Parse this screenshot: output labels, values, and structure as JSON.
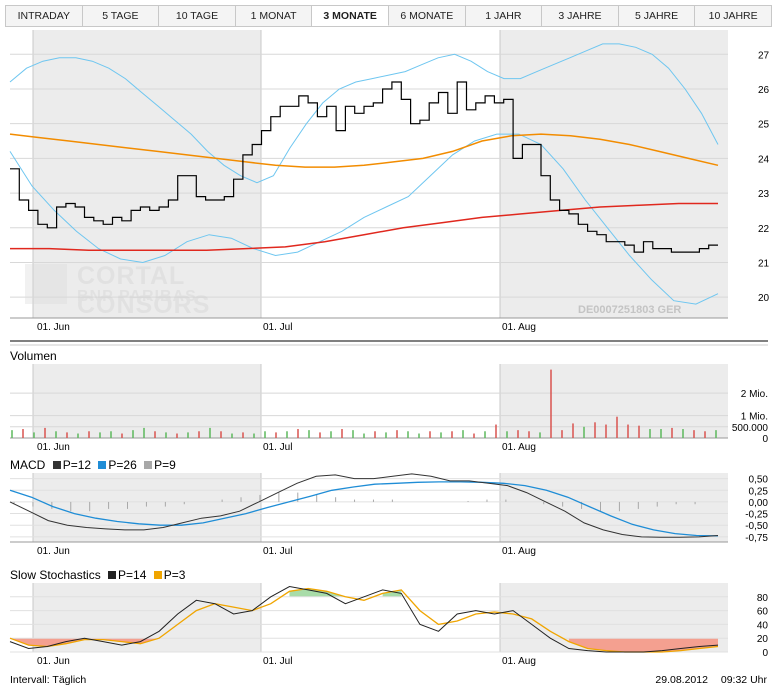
{
  "tabs": [
    {
      "label": "INTRADAY",
      "active": false
    },
    {
      "label": "5 TAGE",
      "active": false
    },
    {
      "label": "10 TAGE",
      "active": false
    },
    {
      "label": "1 MONAT",
      "active": false
    },
    {
      "label": "3 MONATE",
      "active": true
    },
    {
      "label": "6 MONATE",
      "active": false
    },
    {
      "label": "1 JAHR",
      "active": false
    },
    {
      "label": "3 JAHRE",
      "active": false
    },
    {
      "label": "5 JAHRE",
      "active": false
    },
    {
      "label": "10 JAHRE",
      "active": false
    }
  ],
  "watermark": {
    "line1": "CORTAL CONSORS",
    "line2": "BNP PARIBAS"
  },
  "isin": "DE0007251803 GER",
  "x_labels": [
    "01. Jun",
    "01. Jul",
    "01. Aug"
  ],
  "colors": {
    "price": "#000000",
    "bollinger": "#6ec6f0",
    "ma_short": "#f28c00",
    "ma_long": "#e0281e",
    "volume_up": "#5cb85c",
    "volume_down": "#d9534f",
    "macd": "#333333",
    "signal": "#1f8dd6",
    "hist": "#a8a8a8",
    "stoch_k": "#222222",
    "stoch_d": "#f0a500",
    "fill_high": "#a8dca8",
    "fill_low": "#f4a090",
    "shade": "#ececec"
  },
  "chart_data": [
    {
      "type": "line",
      "title": "",
      "y_ticks": [
        20,
        21,
        22,
        23,
        24,
        25,
        26,
        27
      ],
      "ylim": [
        19.4,
        27.7
      ],
      "series": [
        {
          "values": [
            23.7,
            22.8,
            22.5,
            22.1,
            22.0,
            22.6,
            22.7,
            22.6,
            22.3,
            22.2,
            22.1,
            22.3,
            22.2,
            22.5,
            22.6,
            22.5,
            22.6,
            22.8,
            23.5,
            23.5,
            22.9,
            22.8,
            22.8,
            22.9,
            23.4,
            24.1,
            24.4,
            24.8,
            25.2,
            25.5,
            25.5,
            25.8,
            25.6,
            25.2,
            25.5,
            24.8,
            25.5,
            25.3,
            25.5,
            25.6,
            26.0,
            26.2,
            25.7,
            25.0,
            25.1,
            25.6,
            25.9,
            25.3,
            26.2,
            25.4,
            25.6,
            25.8,
            25.6,
            25.7,
            24.0,
            24.4,
            24.4,
            23.5,
            22.8,
            22.5,
            22.4,
            22.1,
            21.9,
            21.8,
            21.6,
            21.6,
            21.5,
            21.3,
            21.6,
            21.4,
            21.4,
            21.3,
            21.3,
            21.3,
            21.4,
            21.5
          ]
        },
        {
          "values": [
            26.2,
            26.6,
            26.8,
            26.9,
            26.9,
            26.8,
            26.6,
            26.3,
            25.9,
            25.5,
            25.1,
            24.7,
            24.2,
            23.8,
            23.5,
            23.3,
            23.5,
            24.3,
            25.0,
            25.6,
            26.0,
            26.2,
            26.3,
            26.4,
            26.5,
            26.7,
            26.9,
            27.0,
            26.8,
            26.5,
            26.3,
            26.3,
            26.5,
            26.7,
            26.9,
            27.1,
            27.3,
            27.3,
            27.2,
            27.0,
            26.6,
            26.0,
            25.3,
            24.4
          ]
        },
        {
          "values": [
            24.2,
            23.2,
            22.5,
            21.9,
            21.4,
            21.1,
            21.0,
            21.2,
            21.6,
            21.8,
            21.7,
            21.4,
            21.2,
            21.3,
            21.6,
            21.9,
            22.3,
            22.6,
            22.9,
            23.5,
            24.1,
            24.5,
            24.7,
            24.7,
            24.4,
            23.7,
            22.8,
            22.0,
            21.2,
            20.5,
            19.9,
            19.8,
            20.1
          ]
        },
        {
          "values": [
            24.7,
            24.6,
            24.5,
            24.4,
            24.3,
            24.2,
            24.1,
            24.0,
            23.9,
            23.8,
            23.75,
            23.75,
            23.8,
            23.9,
            24.0,
            24.2,
            24.5,
            24.65,
            24.7,
            24.65,
            24.55,
            24.4,
            24.2,
            24.0,
            23.8
          ]
        },
        {
          "values": [
            21.4,
            21.4,
            21.35,
            21.35,
            21.35,
            21.35,
            21.4,
            21.45,
            21.6,
            21.8,
            22.0,
            22.15,
            22.3,
            22.4,
            22.5,
            22.6,
            22.65,
            22.7,
            22.7
          ]
        }
      ]
    },
    {
      "type": "bar",
      "title": "Volumen",
      "y_ticks": [
        "2 Mio.",
        "1 Mio.",
        "500.000",
        "0"
      ],
      "values": [
        0.35,
        0.4,
        0.25,
        0.45,
        0.3,
        0.25,
        0.2,
        0.3,
        0.25,
        0.3,
        0.2,
        0.35,
        0.45,
        0.3,
        0.25,
        0.2,
        0.25,
        0.3,
        0.45,
        0.3,
        0.2,
        0.25,
        0.2,
        0.3,
        0.25,
        0.3,
        0.4,
        0.35,
        0.25,
        0.3,
        0.4,
        0.35,
        0.2,
        0.3,
        0.25,
        0.35,
        0.3,
        0.2,
        0.3,
        0.25,
        0.3,
        0.35,
        0.2,
        0.3,
        0.6,
        0.3,
        0.35,
        0.3,
        0.25,
        3.05,
        0.35,
        0.65,
        0.5,
        0.7,
        0.6,
        0.95,
        0.6,
        0.55,
        0.4,
        0.4,
        0.45,
        0.4,
        0.35,
        0.3,
        0.35
      ],
      "up": [
        true,
        false,
        true,
        false,
        true,
        false,
        true,
        false,
        true,
        true,
        false,
        true,
        true,
        false,
        true,
        false,
        true,
        false,
        true,
        false,
        true,
        false,
        true,
        true,
        false,
        true,
        false,
        true,
        false,
        true,
        false,
        true,
        true,
        false,
        true,
        false,
        true,
        true,
        false,
        true,
        false,
        true,
        false,
        true,
        false,
        true,
        false,
        false,
        true,
        false,
        false,
        false,
        true,
        false,
        false,
        false,
        false,
        false,
        true,
        true,
        false,
        true,
        false,
        false,
        true
      ]
    },
    {
      "type": "line",
      "title": "MACD",
      "legend": [
        "P=12",
        "P=26",
        "P=9"
      ],
      "y_ticks": [
        "0,50",
        "0,25",
        "0,00",
        "-0,25",
        "-0,50",
        "-0,75"
      ],
      "series": [
        {
          "values": [
            0.0,
            -0.2,
            -0.4,
            -0.5,
            -0.55,
            -0.58,
            -0.6,
            -0.6,
            -0.55,
            -0.45,
            -0.35,
            -0.3,
            -0.2,
            0.0,
            0.2,
            0.4,
            0.55,
            0.58,
            0.5,
            0.5,
            0.55,
            0.6,
            0.55,
            0.45,
            0.45,
            0.4,
            0.35,
            0.2,
            0.0,
            -0.2,
            -0.45,
            -0.6,
            -0.7,
            -0.75,
            -0.76,
            -0.76,
            -0.75,
            -0.72
          ]
        },
        {
          "values": [
            0.25,
            0.1,
            -0.1,
            -0.25,
            -0.35,
            -0.42,
            -0.47,
            -0.5,
            -0.5,
            -0.45,
            -0.35,
            -0.25,
            -0.12,
            0.0,
            0.12,
            0.25,
            0.32,
            0.38,
            0.4,
            0.42,
            0.43,
            0.43,
            0.42,
            0.4,
            0.35,
            0.25,
            0.1,
            -0.1,
            -0.3,
            -0.48,
            -0.6,
            -0.68,
            -0.72,
            -0.73
          ]
        },
        {
          "values": [
            -0.05,
            -0.1,
            -0.15,
            -0.2,
            -0.2,
            -0.15,
            -0.15,
            -0.1,
            -0.1,
            -0.05,
            0.0,
            0.05,
            0.1,
            0.15,
            0.2,
            0.2,
            0.15,
            0.1,
            0.05,
            0.05,
            0.05,
            0.0,
            0.0,
            0.0,
            0.02,
            0.05,
            0.05,
            0.0,
            -0.05,
            -0.1,
            -0.15,
            -0.2,
            -0.2,
            -0.15,
            -0.1,
            -0.05,
            -0.05,
            0.0
          ]
        }
      ]
    },
    {
      "type": "line",
      "title": "Slow Stochastics",
      "legend": [
        "P=14",
        "P=3"
      ],
      "y_ticks": [
        "80",
        "60",
        "40",
        "20",
        "0"
      ],
      "series": [
        {
          "values": [
            15,
            5,
            8,
            15,
            20,
            15,
            10,
            15,
            30,
            55,
            75,
            70,
            55,
            60,
            80,
            95,
            90,
            85,
            70,
            80,
            90,
            85,
            40,
            30,
            55,
            60,
            55,
            60,
            40,
            20,
            5,
            2,
            0,
            0,
            0,
            2,
            5,
            8,
            10
          ]
        },
        {
          "values": [
            20,
            10,
            8,
            12,
            18,
            18,
            15,
            12,
            20,
            40,
            60,
            70,
            65,
            60,
            70,
            88,
            92,
            88,
            80,
            75,
            85,
            90,
            60,
            40,
            45,
            55,
            58,
            55,
            48,
            30,
            15,
            5,
            2,
            0,
            0,
            0,
            2,
            5,
            8
          ]
        }
      ]
    }
  ],
  "footer": {
    "interval": "Intervall: Täglich",
    "date": "29.08.2012",
    "time": "09:32 Uhr"
  }
}
